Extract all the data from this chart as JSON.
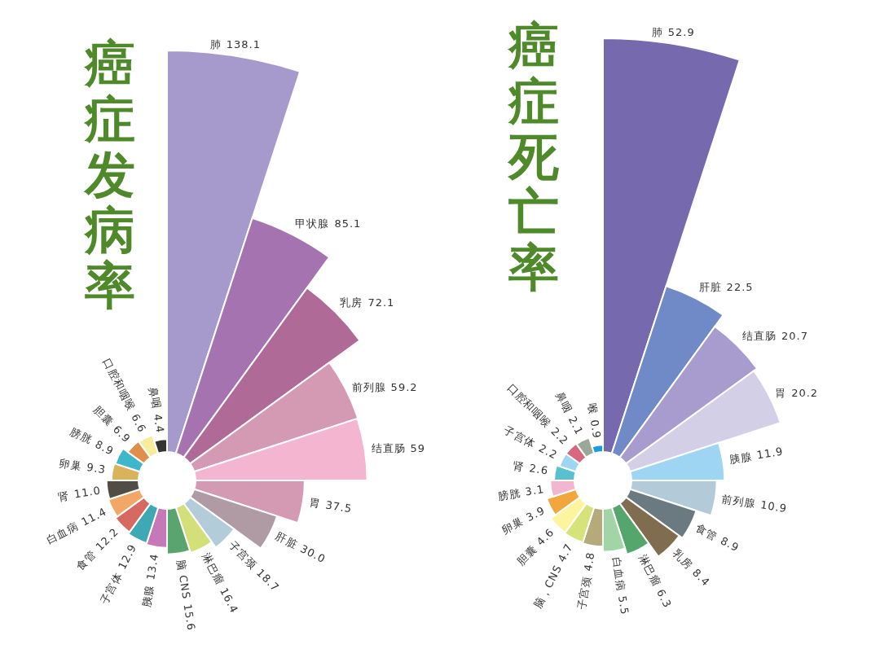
{
  "chart_data": [
    {
      "type": "other",
      "title": "癌症发病率",
      "categories": [
        "肺",
        "甲状腺",
        "乳房",
        "前列腺",
        "结直肠",
        "胃",
        "肝脏",
        "子宫颈",
        "淋巴瘤",
        "脑 CNS",
        "胰腺",
        "子宫体",
        "食管",
        "白血病",
        "肾",
        "卵巢",
        "膀胱",
        "胆囊",
        "口腔和咽喉",
        "鼻咽"
      ],
      "values": [
        138.1,
        85.1,
        72.1,
        59.2,
        59,
        37.5,
        30.0,
        18.7,
        16.4,
        15.6,
        13.4,
        12.9,
        12.2,
        11.4,
        11.0,
        9.3,
        8.9,
        6.9,
        6.6,
        4.4
      ],
      "value_labels": [
        "138.1",
        "85.1",
        "72.1",
        "59.2",
        "59",
        "37.5",
        "30.0",
        "18.7",
        "16.4",
        "15.6",
        "13.4",
        "12.9",
        "12.2",
        "11.4",
        "11.0",
        "9.3",
        "8.9",
        "6.9",
        "6.6",
        "4.4"
      ],
      "colors": [
        "#a59acb",
        "#a673b1",
        "#b06a97",
        "#d49ab3",
        "#f3b5d0",
        "#d49ab3",
        "#b09ba4",
        "#b3ccda",
        "#d3e07a",
        "#5aa56f",
        "#c678b8",
        "#3ea9b5",
        "#d66a60",
        "#f2a766",
        "#514d44",
        "#d9b25a",
        "#3fb7cb",
        "#e08f4a",
        "#f7ec9a",
        "#333333"
      ]
    },
    {
      "type": "other",
      "title": "癌症死亡率",
      "categories": [
        "肺",
        "肝脏",
        "结直肠",
        "胃",
        "胰腺",
        "前列腺",
        "食管",
        "乳房",
        "淋巴瘤",
        "白血病",
        "子宫颈",
        "脑，CNS",
        "胆囊",
        "卵巢",
        "膀胱",
        "肾",
        "子宫体",
        "口腔和咽喉",
        "鼻咽",
        "喉"
      ],
      "values": [
        52.9,
        22.5,
        20.7,
        20.2,
        11.9,
        10.9,
        8.9,
        8.4,
        6.3,
        5.5,
        4.8,
        4.7,
        4.6,
        3.9,
        3.1,
        2.6,
        2.2,
        2.2,
        2.1,
        0.9
      ],
      "value_labels": [
        "52.9",
        "22.5",
        "20.7",
        "20.2",
        "11.9",
        "10.9",
        "8.9",
        "8.4",
        "6.3",
        "5.5",
        "4.8",
        "4.7",
        "4.6",
        "3.9",
        "3.1",
        "2.6",
        "2.2",
        "2.2",
        "2.1",
        "0.9"
      ],
      "colors": [
        "#7669ae",
        "#6f8ac6",
        "#a79ccd",
        "#d3cfe7",
        "#9dd5f2",
        "#b3cad8",
        "#6b7980",
        "#806c4f",
        "#55a66d",
        "#a2d5a5",
        "#b5ab7a",
        "#d6e37b",
        "#fdf59e",
        "#f3a63c",
        "#f3b5d0",
        "#58c1cf",
        "#9dd5f2",
        "#d6677e",
        "#9aa897",
        "#1a9ae0"
      ]
    }
  ]
}
